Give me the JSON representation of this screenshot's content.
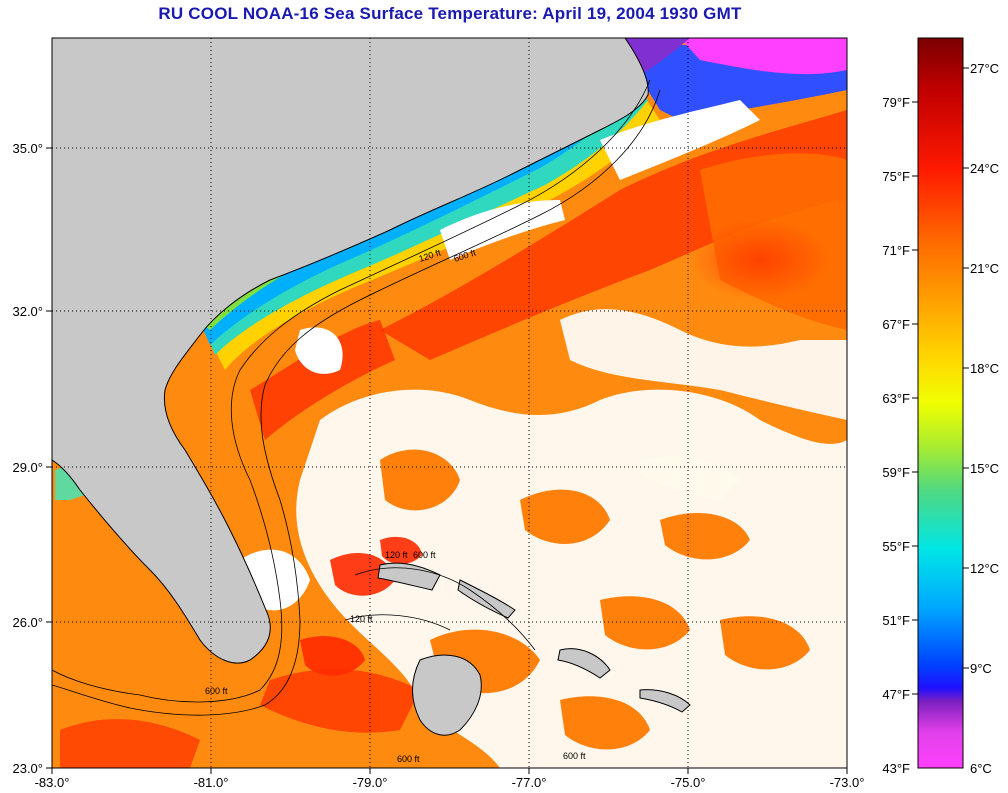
{
  "title": "RU COOL  NOAA-16  Sea Surface Temperature:  April 19, 2004 1930 GMT",
  "map": {
    "lon_range": [
      -83.0,
      -73.0
    ],
    "lat_range": [
      23.0,
      37.3
    ],
    "lon_ticks": [
      "-83.0°",
      "-81.0°",
      "-79.0°",
      "-77.0°",
      "-75.0°",
      "-73.0°"
    ],
    "lat_ticks": [
      "35.0°",
      "32.0°",
      "29.0°",
      "26.0°",
      "23.0°"
    ],
    "grid": true,
    "land_color": "#c8c8c8",
    "cloud_color": "#ffffff"
  },
  "depth_contours": {
    "labels": [
      "120 ft",
      "600 ft"
    ]
  },
  "colorbar": {
    "celsius_labels": [
      "27°C",
      "24°C",
      "21°C",
      "18°C",
      "15°C",
      "12°C",
      "9°C",
      "6°C"
    ],
    "fahrenheit_labels": [
      "79°F",
      "75°F",
      "71°F",
      "67°F",
      "63°F",
      "59°F",
      "55°F",
      "51°F",
      "47°F",
      "43°F"
    ],
    "colors": [
      "#800000",
      "#c00000",
      "#ff0000",
      "#ff5a00",
      "#ff9000",
      "#ffc000",
      "#ffff00",
      "#c8f000",
      "#80e040",
      "#40d090",
      "#00e0e0",
      "#00b0ff",
      "#0060ff",
      "#0000ff",
      "#8000c0",
      "#ff40ff"
    ]
  }
}
